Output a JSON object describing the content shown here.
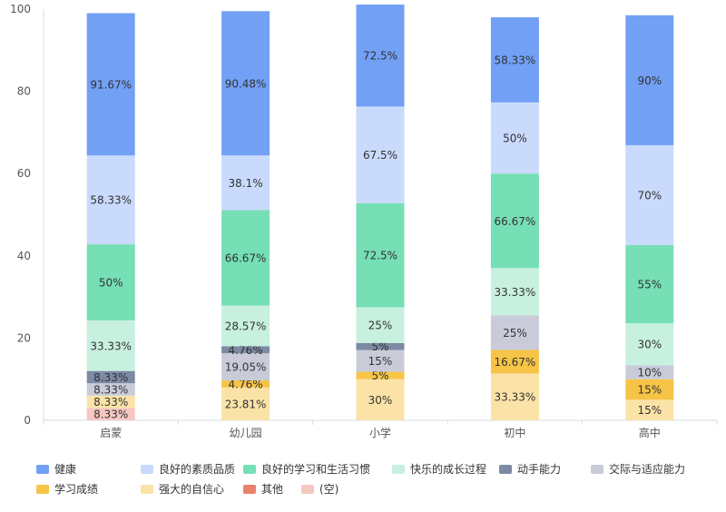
{
  "chart_data": {
    "type": "bar",
    "stacked": true,
    "categories": [
      "启蒙",
      "幼儿园",
      "小学",
      "初中",
      "高中"
    ],
    "ylim": [
      0,
      100
    ],
    "yticks": [
      0,
      20,
      40,
      60,
      80,
      100
    ],
    "grid": false,
    "legend_position": "bottom",
    "series": [
      {
        "name": "(空)",
        "color": "#f6c7c1",
        "values": [
          3.0,
          0,
          0,
          0,
          0
        ],
        "labels": [
          "8.33%",
          "",
          "",
          "",
          ""
        ]
      },
      {
        "name": "其他",
        "color": "#e8826e",
        "values": [
          0,
          0,
          0,
          0,
          0
        ],
        "labels": [
          "",
          "",
          "",
          "",
          ""
        ]
      },
      {
        "name": "强大的自信心",
        "color": "#fbe3a7",
        "values": [
          3.0,
          8.0,
          10.0,
          11.4,
          5.0
        ],
        "labels": [
          "8.33%",
          "23.81%",
          "30%",
          "33.33%",
          "15%"
        ]
      },
      {
        "name": "学习成绩",
        "color": "#f6c446",
        "values": [
          0,
          1.7,
          1.8,
          5.7,
          5.0
        ],
        "labels": [
          "",
          "4.76%",
          "5%",
          "16.67%",
          "15%"
        ]
      },
      {
        "name": "交际与适应能力",
        "color": "#c9ccd8",
        "values": [
          3.0,
          6.6,
          5.3,
          8.4,
          3.4
        ],
        "labels": [
          "8.33%",
          "19.05%",
          "15%",
          "25%",
          "10%"
        ]
      },
      {
        "name": "动手能力",
        "color": "#7c8aa4",
        "values": [
          3.0,
          1.7,
          1.7,
          0,
          0
        ],
        "labels": [
          "8.33%",
          "4.76%",
          "5%",
          "",
          ""
        ]
      },
      {
        "name": "快乐的成长过程",
        "color": "#c8f0df",
        "values": [
          12.3,
          9.9,
          8.7,
          11.5,
          10.2
        ],
        "labels": [
          "33.33%",
          "28.57%",
          "25%",
          "33.33%",
          "30%"
        ]
      },
      {
        "name": "良好的学习和生活习惯",
        "color": "#76dfb5",
        "values": [
          18.5,
          23.2,
          25.3,
          23.0,
          19.0
        ],
        "labels": [
          "50%",
          "66.67%",
          "72.5%",
          "66.67%",
          "55%"
        ]
      },
      {
        "name": "良好的素质品质",
        "color": "#c9dafc",
        "values": [
          21.6,
          13.3,
          23.5,
          17.3,
          24.3
        ],
        "labels": [
          "58.33%",
          "38.1%",
          "67.5%",
          "50%",
          "70%"
        ]
      },
      {
        "name": "健康",
        "color": "#72a0f5",
        "values": [
          34.6,
          35.1,
          24.8,
          20.7,
          31.6
        ],
        "labels": [
          "91.67%",
          "90.48%",
          "72.5%",
          "58.33%",
          "90%"
        ]
      }
    ],
    "legend": [
      {
        "name": "健康",
        "color": "#72a0f5"
      },
      {
        "name": "良好的素质品质",
        "color": "#c9dafc"
      },
      {
        "name": "良好的学习和生活习惯",
        "color": "#76dfb5"
      },
      {
        "name": "快乐的成长过程",
        "color": "#c8f0df"
      },
      {
        "name": "动手能力",
        "color": "#7c8aa4"
      },
      {
        "name": "交际与适应能力",
        "color": "#c9ccd8"
      },
      {
        "name": "学习成绩",
        "color": "#f6c446"
      },
      {
        "name": "强大的自信心",
        "color": "#fbe3a7"
      },
      {
        "name": "其他",
        "color": "#e8826e"
      },
      {
        "name": "(空)",
        "color": "#f6c7c1"
      }
    ]
  }
}
